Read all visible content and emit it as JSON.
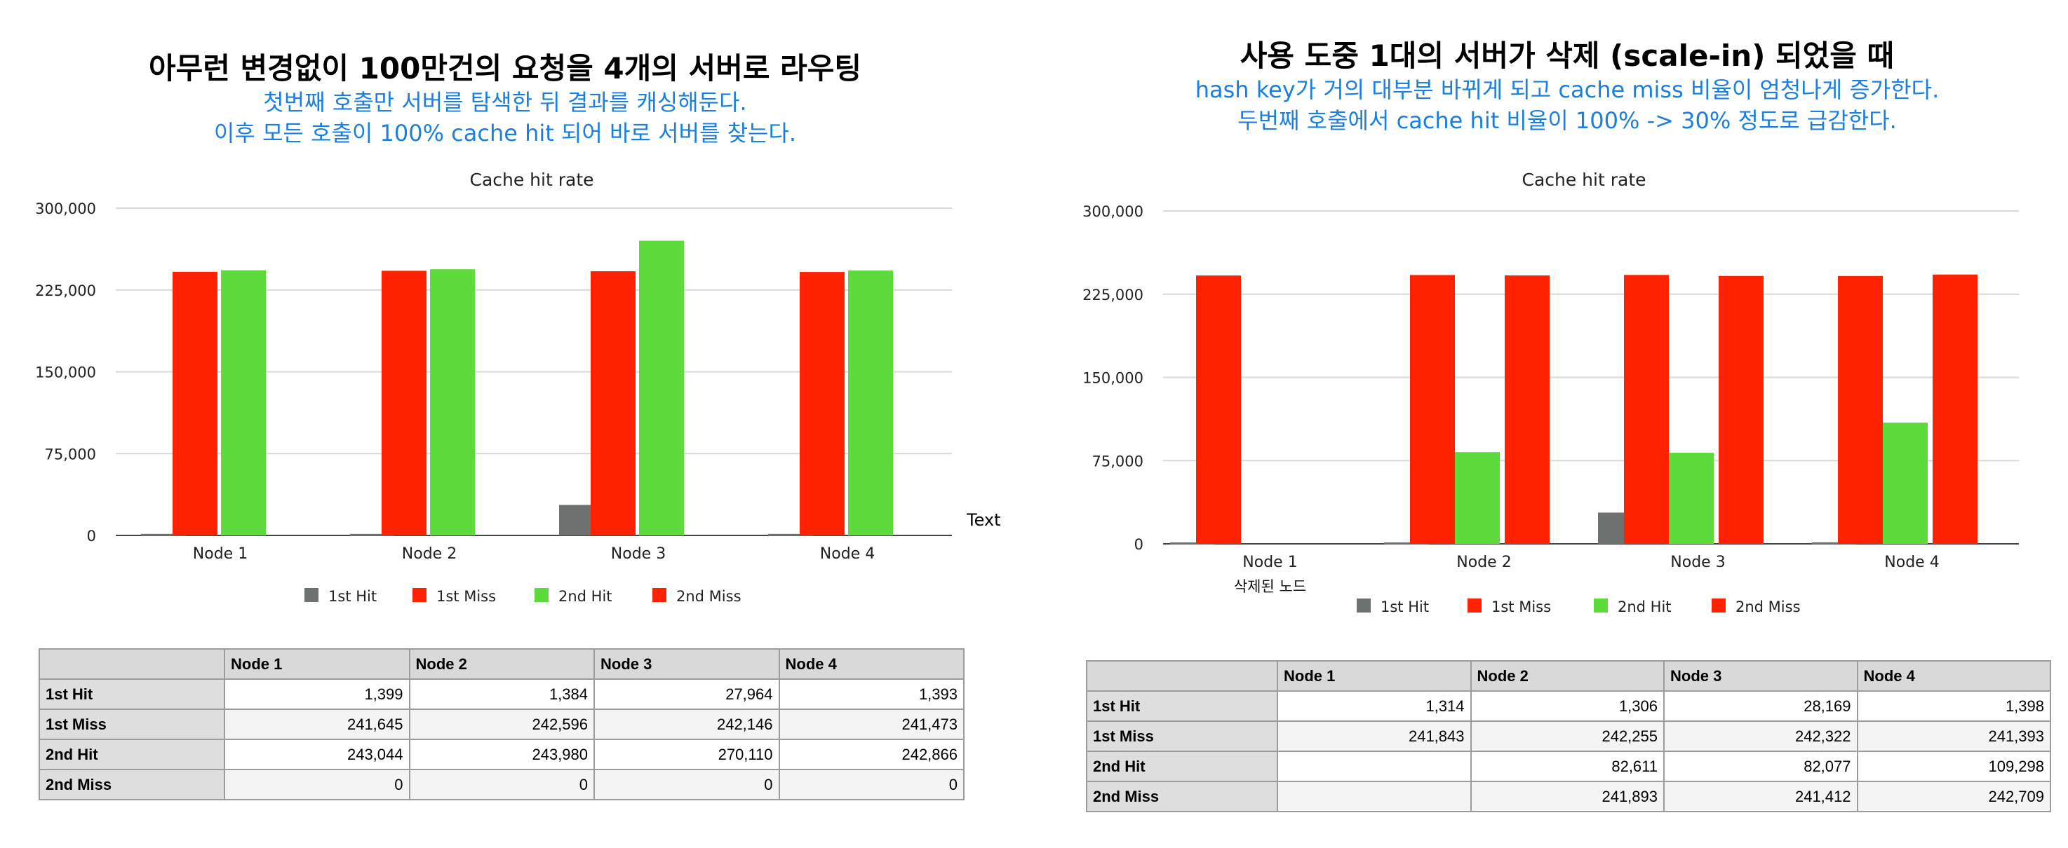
{
  "colors": {
    "first_hit": "#6d7271",
    "first_miss": "#ff2200",
    "second_hit": "#5ddb3a",
    "second_miss": "#ff2200",
    "subtitle": "#1a7fe0",
    "grid": "#d9d9d9"
  },
  "left": {
    "title": "아무런 변경없이 100만건의 요청을 4개의 서버로 라우팅",
    "subtitle_1": "첫번째 호출만 서버를 탐색한 뒤 결과를 캐싱해둔다.",
    "subtitle_2": "이후 모든 호출이 100% cache hit 되어 바로 서버를 찾는다.",
    "stray_label": "Text",
    "table": {
      "columns": [
        "Node 1",
        "Node 2",
        "Node 3",
        "Node 4"
      ],
      "rows": [
        {
          "label": "1st Hit",
          "cells": [
            "1,399",
            "1,384",
            "27,964",
            "1,393"
          ]
        },
        {
          "label": "1st Miss",
          "cells": [
            "241,645",
            "242,596",
            "242,146",
            "241,473"
          ]
        },
        {
          "label": "2nd Hit",
          "cells": [
            "243,044",
            "243,980",
            "270,110",
            "242,866"
          ]
        },
        {
          "label": "2nd Miss",
          "cells": [
            "0",
            "0",
            "0",
            "0"
          ]
        }
      ]
    }
  },
  "right": {
    "title": "사용 도중 1대의 서버가 삭제 (scale-in) 되었을 때",
    "subtitle_1": "hash key가 거의 대부분 바뀌게 되고 cache miss 비율이 엄청나게 증가한다.",
    "subtitle_2": "두번째 호출에서 cache hit 비율이 100% -> 30% 정도로 급감한다.",
    "deleted_note": "삭제된 노드",
    "table": {
      "columns": [
        "Node 1",
        "Node 2",
        "Node 3",
        "Node 4"
      ],
      "rows": [
        {
          "label": "1st Hit",
          "cells": [
            "1,314",
            "1,306",
            "28,169",
            "1,398"
          ]
        },
        {
          "label": "1st Miss",
          "cells": [
            "241,843",
            "242,255",
            "242,322",
            "241,393"
          ]
        },
        {
          "label": "2nd Hit",
          "cells": [
            "",
            "82,611",
            "82,077",
            "109,298"
          ]
        },
        {
          "label": "2nd Miss",
          "cells": [
            "",
            "241,893",
            "241,412",
            "242,709"
          ]
        }
      ]
    }
  },
  "chart_data": [
    {
      "type": "bar",
      "title": "Cache hit rate",
      "categories": [
        "Node 1",
        "Node 2",
        "Node 3",
        "Node 4"
      ],
      "ylim": [
        0,
        300000
      ],
      "yticks": [
        0,
        75000,
        150000,
        225000,
        300000
      ],
      "ytick_labels": [
        "0",
        "75,000",
        "150,000",
        "225,000",
        "300,000"
      ],
      "legend_position": "bottom",
      "grid": true,
      "series": [
        {
          "name": "1st Hit",
          "values": [
            1399,
            1384,
            27964,
            1393
          ]
        },
        {
          "name": "1st Miss",
          "values": [
            241645,
            242596,
            242146,
            241473
          ]
        },
        {
          "name": "2nd Hit",
          "values": [
            243044,
            243980,
            270110,
            242866
          ]
        },
        {
          "name": "2nd Miss",
          "values": [
            0,
            0,
            0,
            0
          ]
        }
      ]
    },
    {
      "type": "bar",
      "title": "Cache hit rate",
      "categories": [
        "Node 1",
        "Node 2",
        "Node 3",
        "Node 4"
      ],
      "ylim": [
        0,
        300000
      ],
      "yticks": [
        0,
        75000,
        150000,
        225000,
        300000
      ],
      "ytick_labels": [
        "0",
        "75,000",
        "150,000",
        "225,000",
        "300,000"
      ],
      "legend_position": "bottom",
      "grid": true,
      "series": [
        {
          "name": "1st Hit",
          "values": [
            1314,
            1306,
            28169,
            1398
          ]
        },
        {
          "name": "1st Miss",
          "values": [
            241843,
            242255,
            242322,
            241393
          ]
        },
        {
          "name": "2nd Hit",
          "values": [
            0,
            82611,
            82077,
            109298
          ]
        },
        {
          "name": "2nd Miss",
          "values": [
            0,
            241893,
            241412,
            242709
          ]
        }
      ]
    }
  ]
}
